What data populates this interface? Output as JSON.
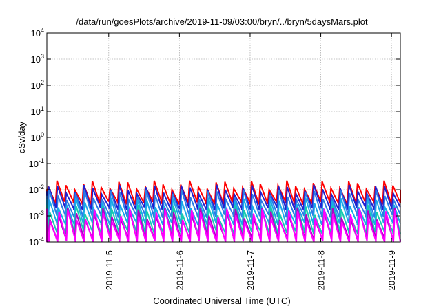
{
  "chart_data": {
    "type": "line",
    "title": "/data/run/goesPlots/archive/2019-11-09/03:00/bryn/../bryn/5daysMars.plot",
    "xlabel": "Coordinated Universal Time (UTC)",
    "ylabel": "cSv/day",
    "yscale": "log",
    "ylim": [
      0.0001,
      10000
    ],
    "y_ticks": [
      {
        "base": "10",
        "exp": "-4",
        "value": 0.0001
      },
      {
        "base": "10",
        "exp": "-3",
        "value": 0.001
      },
      {
        "base": "10",
        "exp": "-2",
        "value": 0.01
      },
      {
        "base": "10",
        "exp": "-1",
        "value": 0.1
      },
      {
        "base": "10",
        "exp": "0",
        "value": 1
      },
      {
        "base": "10",
        "exp": "1",
        "value": 10
      },
      {
        "base": "10",
        "exp": "2",
        "value": 100
      },
      {
        "base": "10",
        "exp": "3",
        "value": 1000
      },
      {
        "base": "10",
        "exp": "4",
        "value": 10000
      }
    ],
    "xlim": [
      "2019-11-04T03:00",
      "2019-11-09T03:00"
    ],
    "x_ticks": [
      {
        "label": "2019-11-5",
        "value": "2019-11-05"
      },
      {
        "label": "2019-11-6",
        "value": "2019-11-06"
      },
      {
        "label": "2019-11-7",
        "value": "2019-11-07"
      },
      {
        "label": "2019-11-8",
        "value": "2019-11-08"
      },
      {
        "label": "2019-11-9",
        "value": "2019-11-09"
      }
    ],
    "grid": true,
    "period_days": 0.125,
    "series": [
      {
        "color": "#ff0000",
        "peak": 0.015,
        "trough": 0.0031,
        "phase_days": 0.0
      },
      {
        "color": "#2020d0",
        "peak": 0.0102,
        "trough": 0.0019,
        "phase_days": 0.006
      },
      {
        "color": "#2c7be5",
        "peak": 0.0063,
        "trough": 0.00098,
        "phase_days": 0.012
      },
      {
        "color": "#19a8e8",
        "peak": 0.0031,
        "trough": 0.00049,
        "phase_days": 0.016
      },
      {
        "color": "#17c9b0",
        "peak": 0.0016,
        "trough": 0.00023,
        "phase_days": 0.02
      },
      {
        "color": "#b000c8",
        "peak": 0.0012,
        "trough": 0.00013,
        "phase_days": 0.024
      },
      {
        "color": "#ff00ff",
        "peak": 0.00105,
        "trough": 0.0001,
        "phase_days": 0.028
      }
    ]
  }
}
